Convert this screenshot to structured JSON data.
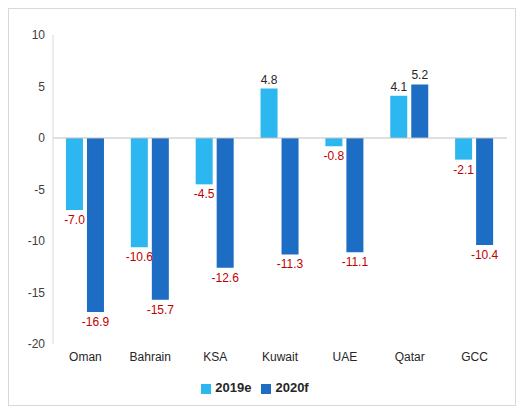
{
  "chart_data": {
    "type": "bar",
    "categories": [
      "Oman",
      "Bahrain",
      "KSA",
      "Kuwait",
      "UAE",
      "Qatar",
      "GCC"
    ],
    "series": [
      {
        "name": "2019e",
        "color": "#2db7f0",
        "values": [
          -7.0,
          -10.6,
          -4.5,
          4.8,
          -0.8,
          4.1,
          -2.1
        ],
        "value_labels": [
          "-7.0",
          "-10.6",
          "-4.5",
          "4.8",
          "-0.8",
          "4.1",
          "-2.1"
        ]
      },
      {
        "name": "2020f",
        "color": "#1c6dc3",
        "values": [
          -16.9,
          -15.7,
          -12.6,
          -11.3,
          -11.1,
          5.2,
          -10.4
        ],
        "value_labels": [
          "-16.9",
          "-15.7",
          "-12.6",
          "-11.3",
          "-11.1",
          "5.2",
          "-10.4"
        ]
      }
    ],
    "ylim": [
      -20,
      10
    ],
    "yticks": [
      -20,
      -15,
      -10,
      -5,
      0,
      5,
      10
    ],
    "grid": false,
    "legend": "bottom",
    "data_labels": true
  }
}
